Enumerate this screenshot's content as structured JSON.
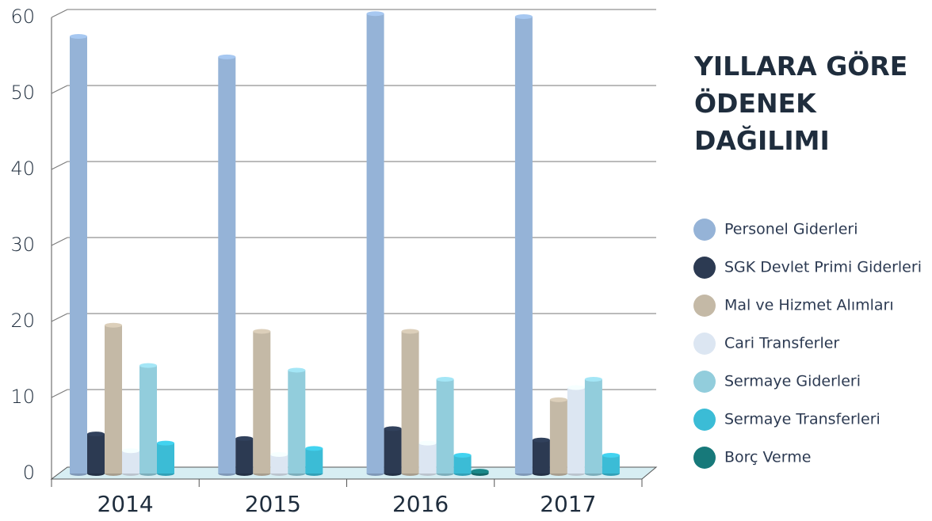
{
  "chart_data": {
    "type": "bar",
    "title": "YILLARA GÖRE ÖDENEK DAĞILIMI",
    "categories": [
      "2014",
      "2015",
      "2016",
      "2017"
    ],
    "series": [
      {
        "name": "Personel Giderleri",
        "color": "#95b3d7",
        "values": [
          57.5,
          54.8,
          60.5,
          60.1
        ]
      },
      {
        "name": "SGK Devlet Primi Giderleri",
        "color": "#2c3a52",
        "values": [
          5.2,
          4.6,
          5.9,
          4.4
        ]
      },
      {
        "name": "Mal ve Hizmet Alımları",
        "color": "#c4b9a6",
        "values": [
          19.5,
          18.7,
          18.7,
          9.7
        ]
      },
      {
        "name": "Cari Transferler",
        "color": "#dce6f2",
        "values": [
          3,
          2.5,
          4,
          11.3
        ]
      },
      {
        "name": "Sermaye Giderleri",
        "color": "#92cddc",
        "values": [
          14.2,
          13.6,
          12.4,
          12.4
        ]
      },
      {
        "name": "Sermaye Transferleri",
        "color": "#3bbcd6",
        "values": [
          4,
          3.3,
          2.4,
          2.4
        ]
      },
      {
        "name": "Borç Verme",
        "color": "#17797a",
        "values": [
          null,
          null,
          0.3,
          null
        ]
      }
    ],
    "ylim": [
      0,
      60
    ],
    "yticks": [
      0,
      10,
      20,
      30,
      40,
      50,
      60
    ],
    "grid": true,
    "legend": "right"
  }
}
